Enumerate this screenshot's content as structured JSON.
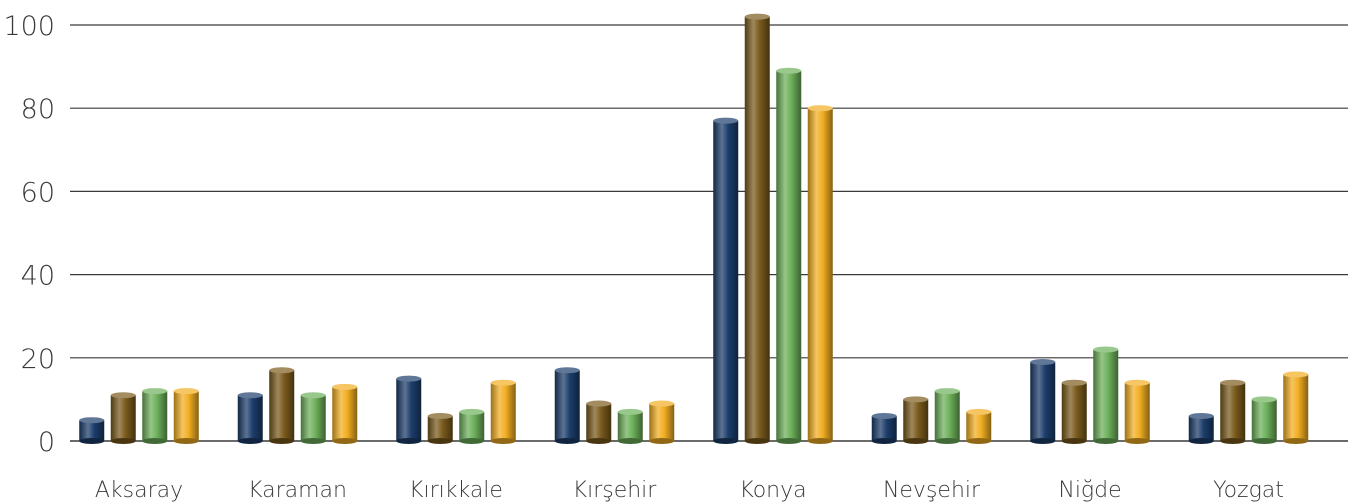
{
  "chart_data": {
    "type": "bar",
    "categories": [
      "Aksaray",
      "Karaman",
      "Kırıkkale",
      "Kırşehir",
      "Konya",
      "Nevşehir",
      "Niğde",
      "Yozgat"
    ],
    "series": [
      {
        "color": "#1c3d6b",
        "values": [
          5,
          11,
          15,
          17,
          77,
          6,
          19,
          6
        ]
      },
      {
        "color": "#7a5a1c",
        "values": [
          11,
          17,
          6,
          9,
          102,
          10,
          14,
          14
        ]
      },
      {
        "color": "#6db05a",
        "values": [
          12,
          11,
          7,
          7,
          89,
          12,
          22,
          10
        ]
      },
      {
        "color": "#f2ae22",
        "values": [
          12,
          13,
          14,
          9,
          80,
          7,
          14,
          16
        ]
      }
    ],
    "yticks": [
      0,
      20,
      40,
      60,
      80,
      100
    ],
    "ylim": [
      0,
      100
    ],
    "grid": true,
    "title": "",
    "xlabel": "",
    "ylabel": ""
  }
}
